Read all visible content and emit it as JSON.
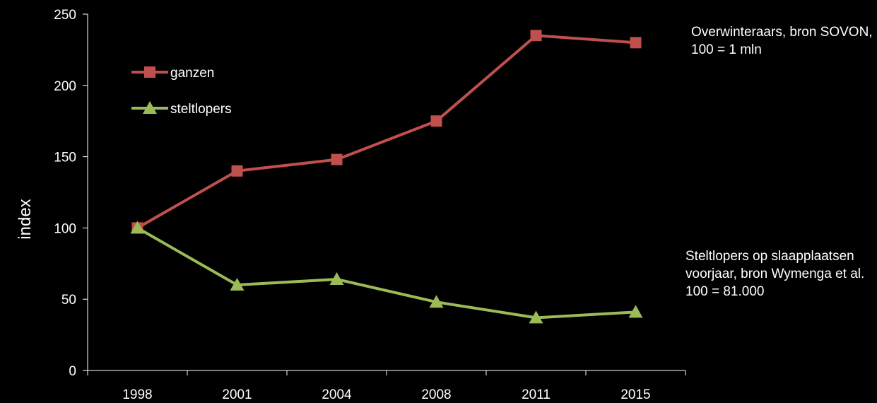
{
  "chart_data": {
    "type": "line",
    "categories": [
      "1998",
      "2001",
      "2004",
      "2008",
      "2011",
      "2015"
    ],
    "series": [
      {
        "name": "ganzen",
        "values": [
          100,
          140,
          148,
          175,
          235,
          230
        ],
        "color": "#c0504d",
        "marker": "square"
      },
      {
        "name": "steltlopers",
        "values": [
          100,
          60,
          64,
          48,
          37,
          41
        ],
        "color": "#9bbb59",
        "marker": "triangle"
      }
    ],
    "ylabel": "index",
    "ylim": [
      0,
      250
    ],
    "yticks": [
      0,
      50,
      100,
      150,
      200,
      250
    ],
    "legend_position": "top-left",
    "grid": false,
    "annotations": [
      "Overwinteraars, bron SOVON, 100 =  1 mln",
      "Steltlopers  op slaapplaatsen voorjaar, bron Wymenga et al. 100 = 81.000"
    ],
    "colors": {
      "background": "#000000",
      "axis": "#ffffff",
      "text": "#ffffff"
    }
  }
}
